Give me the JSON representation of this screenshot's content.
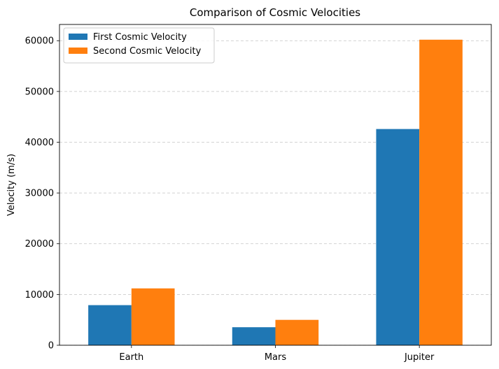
{
  "chart_data": {
    "type": "bar",
    "title": "Comparison of Cosmic Velocities",
    "xlabel": "",
    "ylabel": "Velocity (m/s)",
    "categories": [
      "Earth",
      "Mars",
      "Jupiter"
    ],
    "series": [
      {
        "name": "First Cosmic Velocity",
        "color": "#1f77b4",
        "values": [
          7900,
          3550,
          42600
        ]
      },
      {
        "name": "Second Cosmic Velocity",
        "color": "#ff7f0e",
        "values": [
          11200,
          5000,
          60200
        ]
      }
    ],
    "ylim": [
      0,
      63200
    ],
    "yticks": [
      0,
      10000,
      20000,
      30000,
      40000,
      50000,
      60000
    ],
    "grid": "y, dashed",
    "legend": "top-left"
  }
}
